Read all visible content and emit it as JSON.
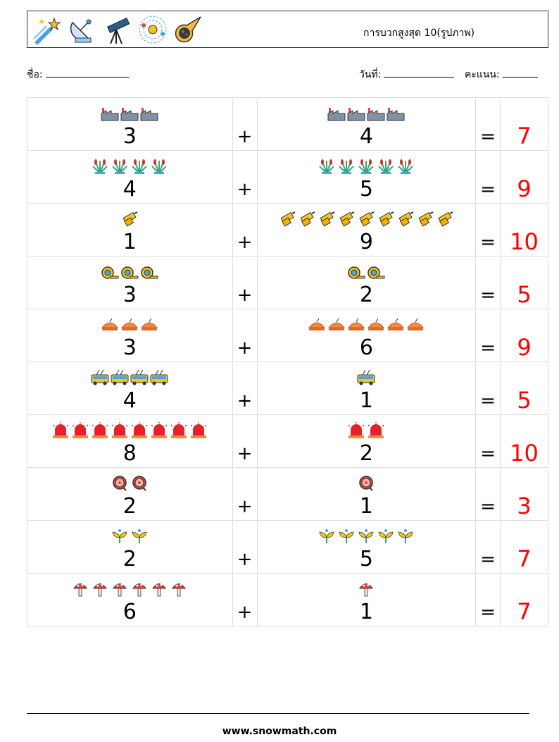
{
  "header": {
    "title": "การบวกสูงสุด 10(รูปภาพ)",
    "icons": [
      "shooting-star-icon",
      "satellite-dish-icon",
      "telescope-icon",
      "solar-system-icon",
      "comet-icon"
    ]
  },
  "info": {
    "name_label": "ชื่อ:",
    "date_label": "วันที่:",
    "score_label": "คะแนน:"
  },
  "operators": {
    "plus": "+",
    "equals": "="
  },
  "problems": [
    {
      "a": 3,
      "b": 4,
      "result": 7,
      "icon": "factory-icon"
    },
    {
      "a": 4,
      "b": 5,
      "result": 9,
      "icon": "reed-plant-icon"
    },
    {
      "a": 1,
      "b": 9,
      "result": 10,
      "icon": "yellow-tool-icon"
    },
    {
      "a": 3,
      "b": 2,
      "result": 5,
      "icon": "tape-measure-icon"
    },
    {
      "a": 3,
      "b": 6,
      "result": 9,
      "icon": "pie-icon"
    },
    {
      "a": 4,
      "b": 1,
      "result": 5,
      "icon": "trolleybus-icon"
    },
    {
      "a": 8,
      "b": 2,
      "result": 10,
      "icon": "siren-icon"
    },
    {
      "a": 2,
      "b": 1,
      "result": 3,
      "icon": "target-icon"
    },
    {
      "a": 2,
      "b": 5,
      "result": 7,
      "icon": "sprout-icon"
    },
    {
      "a": 6,
      "b": 1,
      "result": 7,
      "icon": "mushroom-icon"
    }
  ],
  "footer": {
    "url": "www.snowmath.com"
  },
  "colors": {
    "answer": "#ff0000",
    "grid": "#dddddd"
  }
}
